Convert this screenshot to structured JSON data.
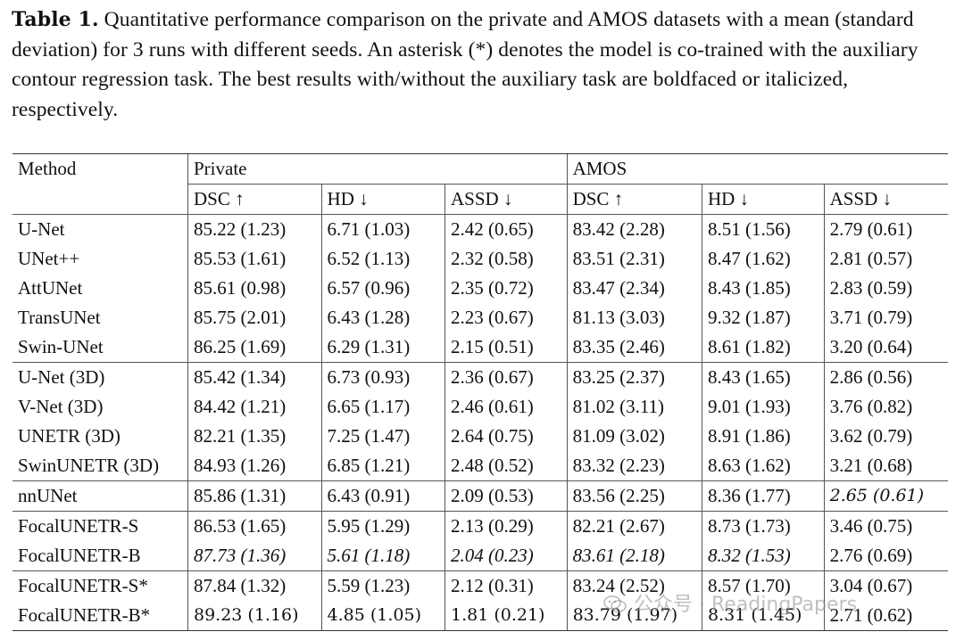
{
  "caption": {
    "label": "Table 1.",
    "text": " Quantitative performance comparison on the private and AMOS datasets with a mean (standard deviation) for 3 runs with different seeds. An asterisk (*) denotes the model is co-trained with the auxiliary contour regression task. The best results with/without the auxiliary task are boldfaced or italicized, respectively."
  },
  "table": {
    "method_header": "Method",
    "groups": [
      "Private",
      "AMOS"
    ],
    "metrics": [
      "DSC ↑",
      "HD ↓",
      "ASSD ↓",
      "DSC ↑",
      "HD ↓",
      "ASSD ↓"
    ],
    "rows": [
      {
        "method": "U-Net",
        "cells": [
          "85.22 (1.23)",
          "6.71 (1.03)",
          "2.42 (0.65)",
          "83.42 (2.28)",
          "8.51 (1.56)",
          "2.79 (0.61)"
        ]
      },
      {
        "method": "UNet++",
        "cells": [
          "85.53 (1.61)",
          "6.52 (1.13)",
          "2.32 (0.58)",
          "83.51 (2.31)",
          "8.47 (1.62)",
          "2.81 (0.57)"
        ]
      },
      {
        "method": "AttUNet",
        "cells": [
          "85.61 (0.98)",
          "6.57 (0.96)",
          "2.35 (0.72)",
          "83.47 (2.34)",
          "8.43 (1.85)",
          "2.83 (0.59)"
        ]
      },
      {
        "method": "TransUNet",
        "cells": [
          "85.75 (2.01)",
          "6.43 (1.28)",
          "2.23 (0.67)",
          "81.13 (3.03)",
          "9.32 (1.87)",
          "3.71 (0.79)"
        ]
      },
      {
        "method": "Swin-UNet",
        "cells": [
          "86.25 (1.69)",
          "6.29 (1.31)",
          "2.15 (0.51)",
          "83.35 (2.46)",
          "8.61 (1.82)",
          "3.20 (0.64)"
        ]
      },
      {
        "method": "U-Net (3D)",
        "group_start": true,
        "cells": [
          "85.42 (1.34)",
          "6.73 (0.93)",
          "2.36 (0.67)",
          "83.25 (2.37)",
          "8.43 (1.65)",
          "2.86 (0.56)"
        ]
      },
      {
        "method": "V-Net (3D)",
        "cells": [
          "84.42 (1.21)",
          "6.65 (1.17)",
          "2.46 (0.61)",
          "81.02 (3.11)",
          "9.01 (1.93)",
          "3.76 (0.82)"
        ]
      },
      {
        "method": "UNETR (3D)",
        "cells": [
          "82.21 (1.35)",
          "7.25 (1.47)",
          "2.64 (0.75)",
          "81.09 (3.02)",
          "8.91 (1.86)",
          "3.62 (0.79)"
        ]
      },
      {
        "method": "SwinUNETR (3D)",
        "cells": [
          "84.93 (1.26)",
          "6.85 (1.21)",
          "2.48 (0.52)",
          "83.32 (2.23)",
          "8.63 (1.62)",
          "3.21 (0.68)"
        ]
      },
      {
        "method": "nnUNet",
        "group_start": true,
        "cells": [
          "85.86 (1.31)",
          "6.43 (0.91)",
          "2.09 (0.53)",
          "83.56 (2.25)",
          "8.36 (1.77)",
          "2.65 (0.61)"
        ],
        "styles": [
          "",
          "",
          "",
          "",
          "",
          "bolditalic"
        ]
      },
      {
        "method": "FocalUNETR-S",
        "group_start": true,
        "cells": [
          "86.53 (1.65)",
          "5.95 (1.29)",
          "2.13 (0.29)",
          "82.21 (2.67)",
          "8.73 (1.73)",
          "3.46 (0.75)"
        ]
      },
      {
        "method": "FocalUNETR-B",
        "cells": [
          "87.73 (1.36)",
          "5.61 (1.18)",
          "2.04 (0.23)",
          "83.61 (2.18)",
          "8.32 (1.53)",
          "2.76 (0.69)"
        ],
        "styles": [
          "ital",
          "ital",
          "ital",
          "ital",
          "ital",
          ""
        ]
      },
      {
        "method": "FocalUNETR-S*",
        "group_start": true,
        "cells": [
          "87.84 (1.32)",
          "5.59 (1.23)",
          "2.12 (0.31)",
          "83.24 (2.52)",
          "8.57 (1.70)",
          "3.04 (0.67)"
        ]
      },
      {
        "method": "FocalUNETR-B*",
        "cells": [
          "89.23 (1.16)",
          "4.85 (1.05)",
          "1.81 (0.21)",
          "83.79 (1.97)",
          "8.31 (1.45)",
          "2.71 (0.62)"
        ],
        "styles": [
          "bold",
          "bold",
          "bold",
          "bold",
          "bold",
          ""
        ]
      }
    ]
  },
  "watermark": {
    "icon": "wechat-icon",
    "text": "公众号 · ReadingPapers"
  }
}
